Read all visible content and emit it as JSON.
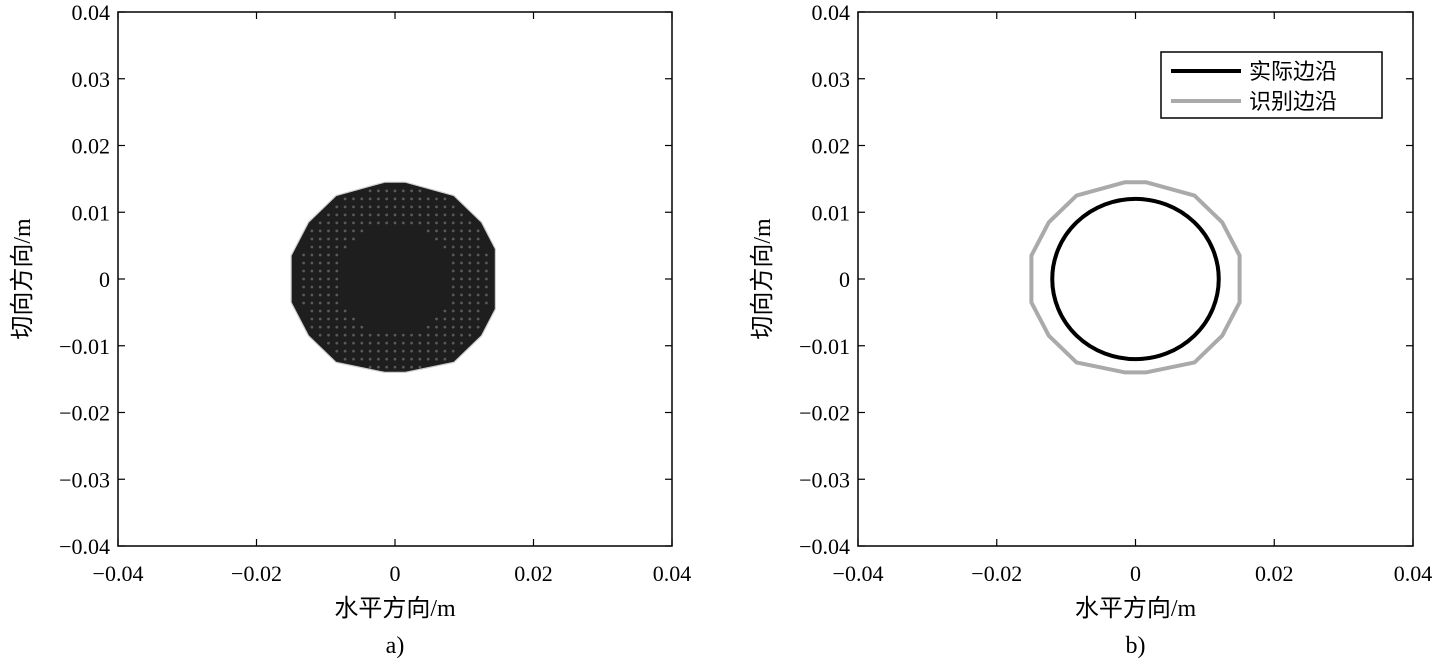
{
  "chart_data": [
    {
      "type": "scatter",
      "panel_label": "a)",
      "xlabel": "水平方向/m",
      "ylabel": "切向方向/m",
      "xlim": [
        -0.04,
        0.04
      ],
      "ylim": [
        -0.04,
        0.04
      ],
      "xticks": [
        "−0.04",
        "−0.02",
        "0",
        "0.02",
        "0.04"
      ],
      "yticks": [
        "0.04",
        "0.03",
        "0.02",
        "0.01",
        "0",
        "−0.01",
        "−0.02",
        "−0.03",
        "−0.04"
      ],
      "grid": false,
      "fill_color": "#1e1e1e",
      "dot_color": "#5a5a5a",
      "region_outline": {
        "x": [
          -0.0015,
          0.0015,
          0.0085,
          0.0125,
          0.0145,
          0.0145,
          0.0125,
          0.0085,
          0.0015,
          -0.0015,
          -0.0085,
          -0.0125,
          -0.015,
          -0.015,
          -0.0125,
          -0.0085
        ],
        "y": [
          0.0145,
          0.0145,
          0.0125,
          0.0085,
          0.0045,
          -0.0045,
          -0.0085,
          -0.0125,
          -0.014,
          -0.014,
          -0.0125,
          -0.0085,
          -0.0035,
          0.0035,
          0.0085,
          0.0125
        ]
      },
      "sample_grid": {
        "spacing": 0.0012,
        "inner_radius": 0.0082,
        "outer_radius": 0.0152
      }
    },
    {
      "type": "line",
      "panel_label": "b)",
      "xlabel": "水平方向/m",
      "ylabel": "切向方向/m",
      "xlim": [
        -0.04,
        0.04
      ],
      "ylim": [
        -0.04,
        0.04
      ],
      "xticks": [
        "−0.04",
        "−0.02",
        "0",
        "0.02",
        "0.04"
      ],
      "yticks": [
        "0.04",
        "0.03",
        "0.02",
        "0.01",
        "0",
        "−0.01",
        "−0.02",
        "−0.03",
        "−0.04"
      ],
      "grid": false,
      "legend_position": "top-right",
      "series": [
        {
          "name": "实际边沿",
          "color": "#000000",
          "shape": "circle",
          "center": [
            0,
            0
          ],
          "radius": 0.012
        },
        {
          "name": "识别边沿",
          "color": "#aaaaaa",
          "x": [
            -0.0015,
            0.0015,
            0.0085,
            0.0125,
            0.015,
            0.015,
            0.0125,
            0.0085,
            0.0015,
            -0.0015,
            -0.0085,
            -0.0125,
            -0.015,
            -0.015,
            -0.0125,
            -0.0085
          ],
          "y": [
            0.0145,
            0.0145,
            0.0125,
            0.0085,
            0.0035,
            -0.0035,
            -0.0085,
            -0.0125,
            -0.014,
            -0.014,
            -0.0125,
            -0.0085,
            -0.0035,
            0.0035,
            0.0085,
            0.0125
          ]
        }
      ]
    }
  ]
}
